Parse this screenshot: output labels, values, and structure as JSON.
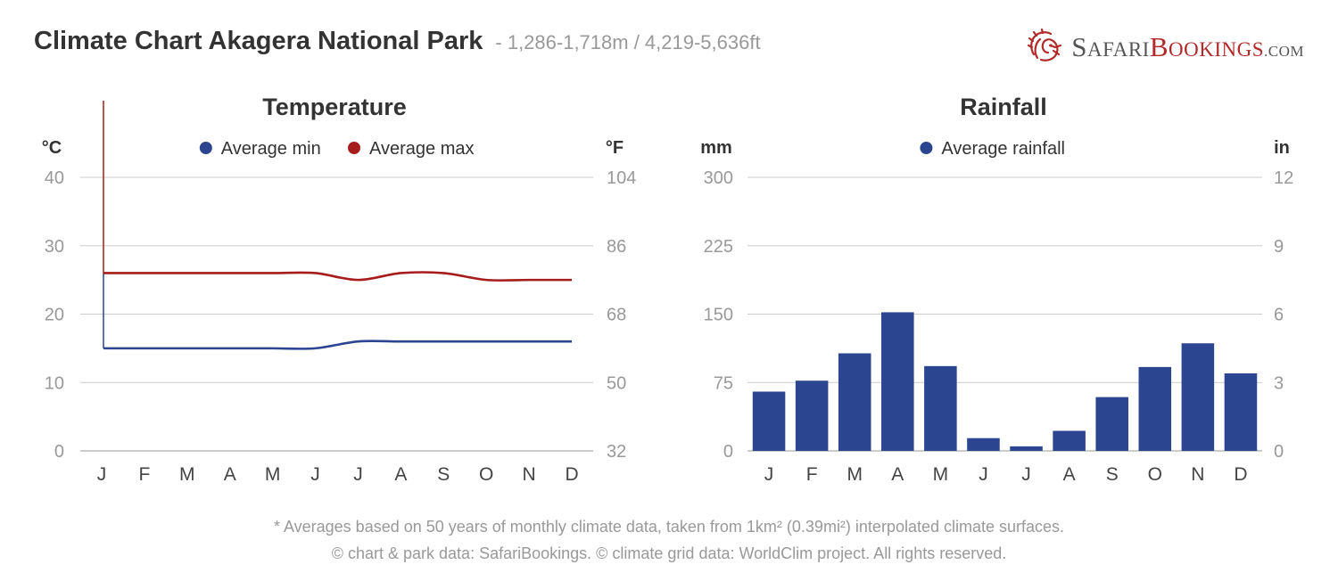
{
  "header": {
    "title": "Climate Chart Akagera National Park",
    "subtitle": "- 1,286-1,718m / 4,219-5,636ft"
  },
  "logo": {
    "part1_big": "S",
    "part1_small": "AFARI",
    "part2_big": "B",
    "part2_small": "OOKINGS",
    "suffix": ".COM",
    "brand_red": "#b12a2a",
    "icon": "lion-head-icon"
  },
  "colors": {
    "min_series": "#2b4590",
    "max_series": "#a61c1c",
    "rain_bars": "#2b4590",
    "grid": "#cccccc",
    "axis_text": "#999999",
    "title_text": "#333333"
  },
  "chart_data": [
    {
      "type": "line",
      "title": "Temperature",
      "y_unit_left": "°C",
      "y_unit_right": "°F",
      "legend_position": "top-center",
      "categories": [
        "J",
        "F",
        "M",
        "A",
        "M",
        "J",
        "J",
        "A",
        "S",
        "O",
        "N",
        "D"
      ],
      "ylim": [
        0,
        40
      ],
      "y_ticks": [
        0,
        10,
        20,
        30,
        40
      ],
      "y_ticks_right": [
        32,
        50,
        68,
        86,
        104
      ],
      "grid": true,
      "series": [
        {
          "name": "Average min",
          "values": [
            15,
            15,
            15,
            15,
            15,
            15,
            16,
            16,
            16,
            16,
            16,
            16
          ]
        },
        {
          "name": "Average max",
          "values": [
            26,
            26,
            26,
            26,
            26,
            26,
            25,
            26,
            26,
            25,
            25,
            25
          ]
        }
      ]
    },
    {
      "type": "bar",
      "title": "Rainfall",
      "y_unit_left": "mm",
      "y_unit_right": "in",
      "legend_position": "top-center",
      "categories": [
        "J",
        "F",
        "M",
        "A",
        "M",
        "J",
        "J",
        "A",
        "S",
        "O",
        "N",
        "D"
      ],
      "ylim": [
        0,
        300
      ],
      "y_ticks": [
        0,
        75,
        150,
        225,
        300
      ],
      "y_ticks_right": [
        0,
        3,
        6,
        9,
        12
      ],
      "grid": true,
      "series": [
        {
          "name": "Average rainfall",
          "values": [
            65,
            77,
            107,
            152,
            93,
            14,
            5,
            22,
            59,
            92,
            118,
            85
          ]
        }
      ]
    }
  ],
  "footer": {
    "line1": "* Averages based on 50 years of monthly climate data, taken from 1km² (0.39mi²) interpolated climate surfaces.",
    "line2": "© chart & park data: SafariBookings. © climate grid data: WorldClim project. All rights reserved."
  }
}
